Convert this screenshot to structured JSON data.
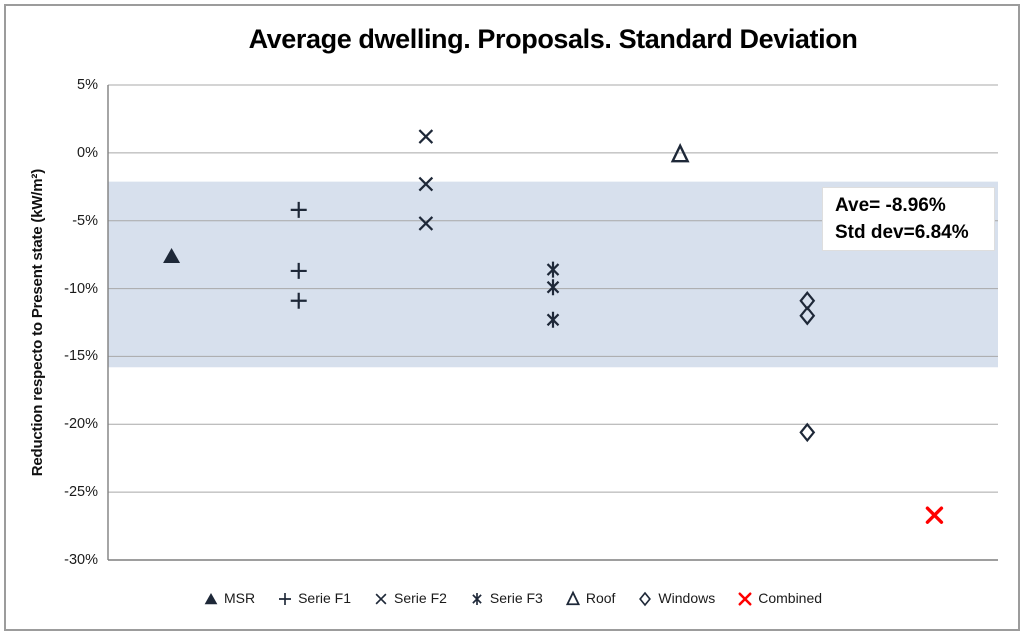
{
  "figure": {
    "title": "Average dwelling. Proposals. Standard Deviation",
    "y_axis_title": "Reduction respecto to Present state (kW/m²)",
    "annotation": {
      "line1": "Ave= -8.96%",
      "line2": "Std dev=6.84%"
    }
  },
  "colors": {
    "marker_dark": "#1e2838",
    "marker_red": "#ff0000",
    "band_fill": "#d7e0ed",
    "gridline": "#a8a8a8",
    "axis_line": "#7f7f7f"
  },
  "chart_data": {
    "type": "scatter",
    "title": "Average dwelling. Proposals. Standard Deviation",
    "xlabel": "",
    "ylabel": "Reduction respecto to Present state (kW/m²)",
    "ylim": [
      -30,
      5
    ],
    "grid": true,
    "legend_position": "bottom",
    "x_slots": 7,
    "yticks": [
      {
        "value": 5,
        "label": "5%"
      },
      {
        "value": 0,
        "label": "0%"
      },
      {
        "value": -5,
        "label": "-5%"
      },
      {
        "value": -10,
        "label": "-10%"
      },
      {
        "value": -15,
        "label": "-15%"
      },
      {
        "value": -20,
        "label": "-20%"
      },
      {
        "value": -25,
        "label": "-25%"
      },
      {
        "value": -30,
        "label": "-30%"
      }
    ],
    "band": {
      "mean_pct": -8.96,
      "std_pct": 6.84,
      "upper_pct": -2.12,
      "lower_pct": -15.8,
      "color": "#d7e0ed"
    },
    "series": [
      {
        "name": "MSR",
        "marker": "triangle-filled",
        "color": "#1e2838",
        "x_slot": 0,
        "values_pct": [
          -7.6
        ]
      },
      {
        "name": "Serie F1",
        "marker": "plus",
        "color": "#1e2838",
        "x_slot": 1,
        "values_pct": [
          -4.2,
          -8.7,
          -10.9
        ]
      },
      {
        "name": "Serie F2",
        "marker": "x",
        "color": "#1e2838",
        "x_slot": 2,
        "values_pct": [
          1.2,
          -2.3,
          -5.2
        ]
      },
      {
        "name": "Serie F3",
        "marker": "asterisk",
        "color": "#1e2838",
        "x_slot": 3,
        "values_pct": [
          -8.6,
          -9.9,
          -12.3
        ]
      },
      {
        "name": "Roof",
        "marker": "triangle-open",
        "color": "#1e2838",
        "x_slot": 4,
        "values_pct": [
          -0.1
        ]
      },
      {
        "name": "Windows",
        "marker": "diamond-open",
        "color": "#1e2838",
        "x_slot": 5,
        "values_pct": [
          -10.9,
          -12.0,
          -20.6
        ]
      },
      {
        "name": "Combined",
        "marker": "x-thick",
        "color": "#ff0000",
        "x_slot": 6,
        "values_pct": [
          -26.7
        ]
      }
    ]
  }
}
